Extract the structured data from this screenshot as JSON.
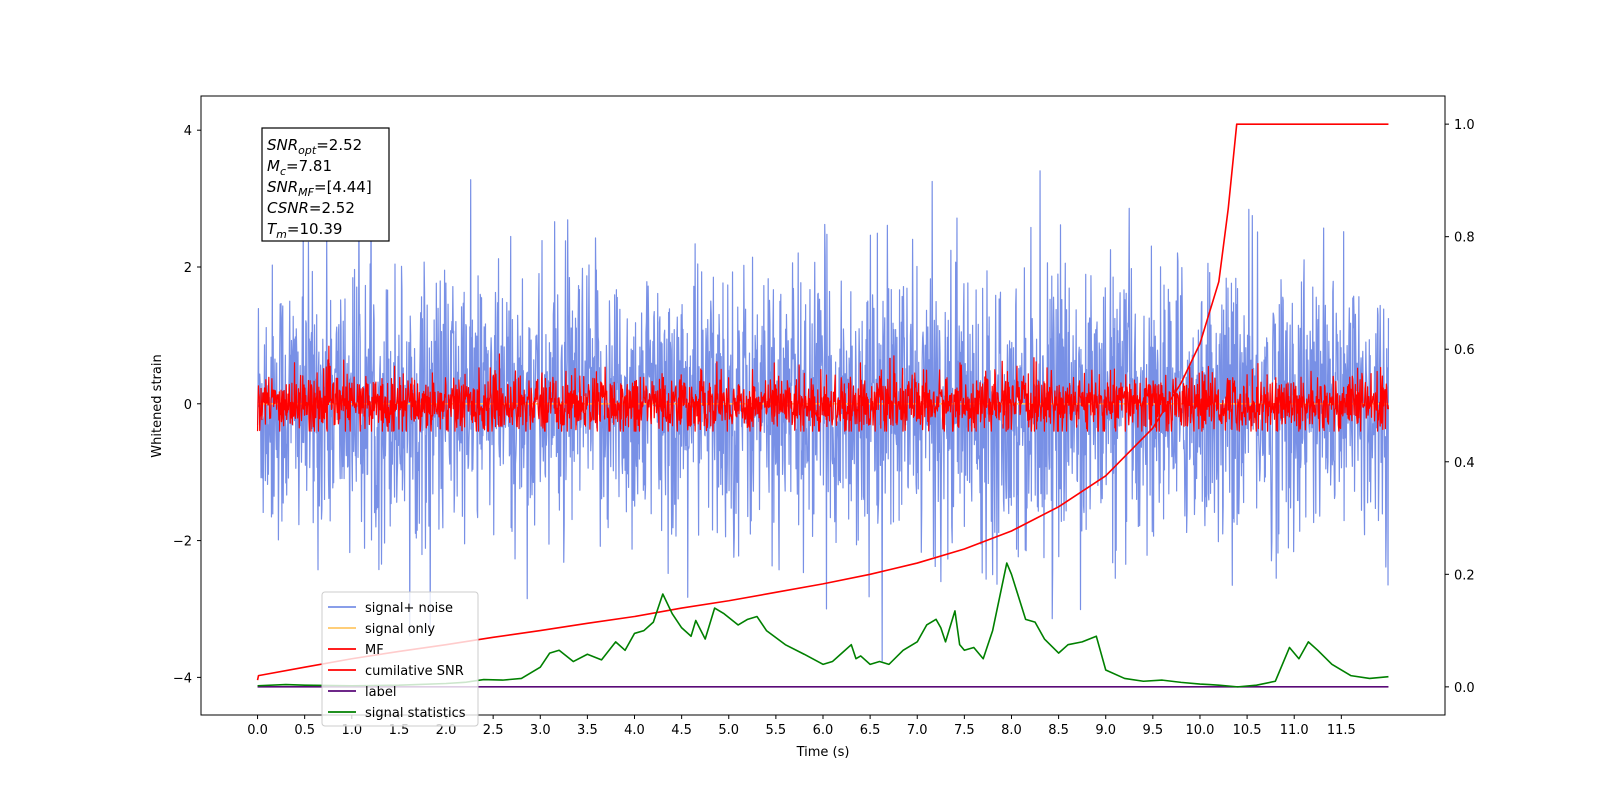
{
  "chart_data": {
    "type": "line",
    "xlabel": "Time (s)",
    "ylabel": "Whitened strain",
    "xlim": [
      -0.6,
      12.6
    ],
    "ylim": [
      -4.55,
      4.5
    ],
    "y2lim": [
      -0.05,
      1.05
    ],
    "x_ticks": [
      0.0,
      0.5,
      1.0,
      1.5,
      2.0,
      2.5,
      3.0,
      3.5,
      4.0,
      4.5,
      5.0,
      5.5,
      6.0,
      6.5,
      7.0,
      7.5,
      8.0,
      8.5,
      9.0,
      9.5,
      10.0,
      10.5,
      11.0,
      11.5
    ],
    "x_tick_labels": [
      "0.0",
      "0.5",
      "1.0",
      "1.5",
      "2.0",
      "2.5",
      "3.0",
      "3.5",
      "4.0",
      "4.5",
      "5.0",
      "5.5",
      "6.0",
      "6.5",
      "7.0",
      "7.5",
      "8.0",
      "8.5",
      "9.0",
      "9.5",
      "10.0",
      "10.5",
      "11.0",
      "11.5"
    ],
    "y_ticks": [
      -4,
      -2,
      0,
      2,
      4
    ],
    "y_tick_labels": [
      "−4",
      "−2",
      "0",
      "2",
      "4"
    ],
    "y2_ticks": [
      0.0,
      0.2,
      0.4,
      0.6,
      0.8,
      1.0
    ],
    "y2_tick_labels": [
      "0.0",
      "0.2",
      "0.4",
      "0.6",
      "0.8",
      "1.0"
    ],
    "grid": false,
    "legend_position": "lower-left",
    "annotation": {
      "lines": [
        {
          "main": "SNR",
          "sub": "opt",
          "rest": "=2.52"
        },
        {
          "main": "M",
          "sub": "c",
          "rest": "=7.81"
        },
        {
          "main": "SNR",
          "sub": "MF",
          "rest": "=[4.44]"
        },
        {
          "main": "CSNR",
          "sub": "",
          "rest": "=2.52"
        },
        {
          "main": "T",
          "sub": "m",
          "rest": "=10.39"
        }
      ]
    },
    "series": [
      {
        "name": "signal+ noise",
        "color": "#7890e6",
        "axis": "left",
        "kind": "noise",
        "x_range": [
          0.0,
          12.0
        ],
        "approx_std": 1.0,
        "approx_range": [
          -4.15,
          4.05
        ]
      },
      {
        "name": "signal only",
        "color": "#ffc766",
        "axis": "left",
        "kind": "constant",
        "x_range": [
          0.0,
          12.0
        ],
        "value": 0.0
      },
      {
        "name": "MF",
        "color": "#ff0000",
        "axis": "left",
        "kind": "noise",
        "x_range": [
          0.0,
          12.0
        ],
        "approx_std": 0.22,
        "approx_range": [
          -0.4,
          1.0
        ]
      },
      {
        "name": "cumilative SNR",
        "color": "#ff0000",
        "axis": "right",
        "kind": "curve",
        "x": [
          0.0,
          0.01,
          0.5,
          1.0,
          1.5,
          2.0,
          2.5,
          3.0,
          3.5,
          4.0,
          4.5,
          5.0,
          5.5,
          6.0,
          6.5,
          7.0,
          7.5,
          8.0,
          8.5,
          9.0,
          9.5,
          9.8,
          10.0,
          10.2,
          10.3,
          10.39,
          10.4,
          12.0
        ],
        "values": [
          0.012,
          0.02,
          0.035,
          0.05,
          0.063,
          0.075,
          0.088,
          0.1,
          0.113,
          0.125,
          0.14,
          0.153,
          0.168,
          0.183,
          0.2,
          0.22,
          0.245,
          0.277,
          0.32,
          0.375,
          0.46,
          0.54,
          0.61,
          0.72,
          0.85,
          1.0,
          1.0,
          1.0
        ]
      },
      {
        "name": "label",
        "color": "#5a0a78",
        "axis": "right",
        "kind": "curve",
        "x": [
          0.0,
          12.0
        ],
        "values": [
          0.0,
          0.0
        ]
      },
      {
        "name": "signal statistics",
        "color": "#008000",
        "axis": "right",
        "kind": "curve",
        "x": [
          0.0,
          0.3,
          0.5,
          1.0,
          1.5,
          2.0,
          2.2,
          2.4,
          2.6,
          2.8,
          3.0,
          3.1,
          3.2,
          3.35,
          3.5,
          3.65,
          3.8,
          3.9,
          4.0,
          4.1,
          4.2,
          4.3,
          4.4,
          4.5,
          4.6,
          4.65,
          4.75,
          4.85,
          4.95,
          5.1,
          5.2,
          5.3,
          5.4,
          5.6,
          5.8,
          6.0,
          6.1,
          6.2,
          6.3,
          6.35,
          6.4,
          6.5,
          6.6,
          6.7,
          6.85,
          7.0,
          7.1,
          7.2,
          7.25,
          7.3,
          7.4,
          7.45,
          7.5,
          7.6,
          7.7,
          7.8,
          7.95,
          8.0,
          8.15,
          8.25,
          8.35,
          8.5,
          8.6,
          8.75,
          8.9,
          9.0,
          9.2,
          9.4,
          9.6,
          9.8,
          10.0,
          10.1,
          10.2,
          10.4,
          10.6,
          10.8,
          10.95,
          11.05,
          11.15,
          11.25,
          11.4,
          11.6,
          11.8,
          12.0
        ],
        "values": [
          0.002,
          0.004,
          0.003,
          0.002,
          0.003,
          0.006,
          0.008,
          0.013,
          0.012,
          0.015,
          0.035,
          0.06,
          0.065,
          0.045,
          0.058,
          0.048,
          0.08,
          0.065,
          0.095,
          0.1,
          0.115,
          0.165,
          0.13,
          0.105,
          0.09,
          0.118,
          0.085,
          0.14,
          0.13,
          0.11,
          0.12,
          0.125,
          0.1,
          0.075,
          0.058,
          0.04,
          0.045,
          0.06,
          0.075,
          0.05,
          0.055,
          0.04,
          0.045,
          0.04,
          0.065,
          0.08,
          0.11,
          0.12,
          0.105,
          0.08,
          0.135,
          0.075,
          0.065,
          0.07,
          0.05,
          0.1,
          0.22,
          0.2,
          0.12,
          0.115,
          0.085,
          0.06,
          0.075,
          0.08,
          0.09,
          0.03,
          0.015,
          0.01,
          0.012,
          0.008,
          0.005,
          0.004,
          0.003,
          0.0,
          0.003,
          0.01,
          0.07,
          0.05,
          0.08,
          0.065,
          0.04,
          0.02,
          0.015,
          0.018
        ]
      }
    ]
  }
}
